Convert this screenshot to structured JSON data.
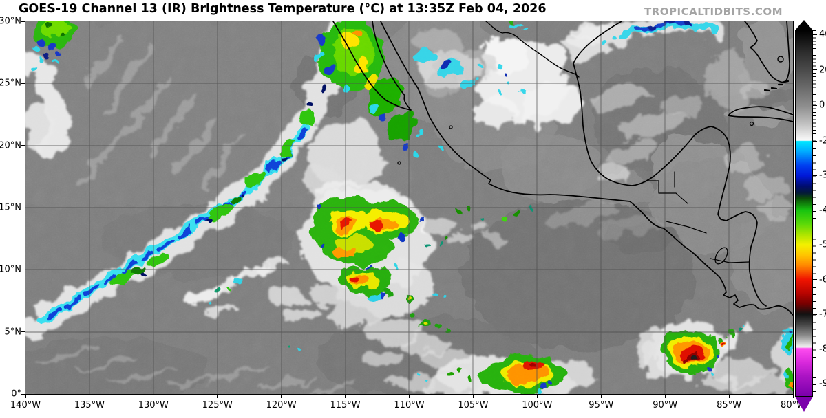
{
  "header": {
    "title": "GOES-19 Channel 13 (IR) Brightness Temperature (°C) at 13:35Z Feb 04, 2026",
    "watermark": "TROPICALTIDBITS.COM"
  },
  "axes": {
    "longitude": {
      "ticks": [
        {
          "label": "140°W",
          "value": 140
        },
        {
          "label": "135°W",
          "value": 135
        },
        {
          "label": "130°W",
          "value": 130
        },
        {
          "label": "125°W",
          "value": 125
        },
        {
          "label": "120°W",
          "value": 120
        },
        {
          "label": "115°W",
          "value": 115
        },
        {
          "label": "110°W",
          "value": 110
        },
        {
          "label": "105°W",
          "value": 105
        },
        {
          "label": "100°W",
          "value": 100
        },
        {
          "label": "95°W",
          "value": 95
        },
        {
          "label": "90°W",
          "value": 90
        },
        {
          "label": "85°W",
          "value": 85
        },
        {
          "label": "80°W",
          "value": 80
        }
      ]
    },
    "latitude": {
      "ticks": [
        {
          "label": "30°N",
          "value": 30
        },
        {
          "label": "25°N",
          "value": 25
        },
        {
          "label": "20°N",
          "value": 20
        },
        {
          "label": "15°N",
          "value": 15
        },
        {
          "label": "10°N",
          "value": 10
        },
        {
          "label": "5°N",
          "value": 5
        },
        {
          "label": "0°",
          "value": 0
        }
      ]
    }
  },
  "colorbar": {
    "ticks": [
      {
        "label": "40",
        "value": 40
      },
      {
        "label": "20",
        "value": 20
      },
      {
        "label": "0",
        "value": 0
      },
      {
        "label": "-20",
        "value": -20
      },
      {
        "label": "-30",
        "value": -30
      },
      {
        "label": "-40",
        "value": -40
      },
      {
        "label": "-50",
        "value": -50
      },
      {
        "label": "-60",
        "value": -60
      },
      {
        "label": "-70",
        "value": -70
      },
      {
        "label": "-80",
        "value": -80
      },
      {
        "label": "-90",
        "value": -90
      }
    ],
    "gradient_stops": [
      {
        "value": 43,
        "color": "#000000"
      },
      {
        "value": 30,
        "color": "#2e2e2e"
      },
      {
        "value": 20,
        "color": "#4b4b4b"
      },
      {
        "value": 10,
        "color": "#6b6b6b"
      },
      {
        "value": 0,
        "color": "#8d8d8d"
      },
      {
        "value": -10,
        "color": "#c0c0c0"
      },
      {
        "value": -19.6,
        "color": "#fafafa"
      },
      {
        "value": -20,
        "color": "#00e8ff"
      },
      {
        "value": -23,
        "color": "#00aaff"
      },
      {
        "value": -27,
        "color": "#0040f0"
      },
      {
        "value": -30,
        "color": "#0018d8"
      },
      {
        "value": -33,
        "color": "#000c70"
      },
      {
        "value": -35,
        "color": "#041a38"
      },
      {
        "value": -36.5,
        "color": "#0b4a08"
      },
      {
        "value": -40,
        "color": "#17c310"
      },
      {
        "value": -44,
        "color": "#5cd908"
      },
      {
        "value": -47,
        "color": "#abe400"
      },
      {
        "value": -50,
        "color": "#f4f000"
      },
      {
        "value": -53,
        "color": "#ffc400"
      },
      {
        "value": -56,
        "color": "#ff8800"
      },
      {
        "value": -60,
        "color": "#f01400"
      },
      {
        "value": -64,
        "color": "#b80400"
      },
      {
        "value": -67,
        "color": "#780000"
      },
      {
        "value": -70,
        "color": "#111111"
      },
      {
        "value": -73,
        "color": "#454545"
      },
      {
        "value": -76,
        "color": "#858585"
      },
      {
        "value": -79.6,
        "color": "#f2f2f2"
      },
      {
        "value": -80,
        "color": "#ff4df0"
      },
      {
        "value": -84,
        "color": "#d929dc"
      },
      {
        "value": -88,
        "color": "#ab14c4"
      },
      {
        "value": -93.6,
        "color": "#7c00ac"
      }
    ]
  },
  "map_data": {
    "type": "heatmap",
    "satellite": "GOES-19",
    "channel": "Channel 13 (IR)",
    "quantity": "Brightness Temperature",
    "units": "°C",
    "valid_time": "13:35Z Feb 04, 2026",
    "extent": {
      "lon_west": 140,
      "lon_east": 80,
      "lat_south": 0,
      "lat_north": 30,
      "lon_hemisphere": "W",
      "lat_hemisphere": "N"
    },
    "grid_spacing_deg": 5,
    "colorbar_range": [
      -90,
      40
    ]
  }
}
